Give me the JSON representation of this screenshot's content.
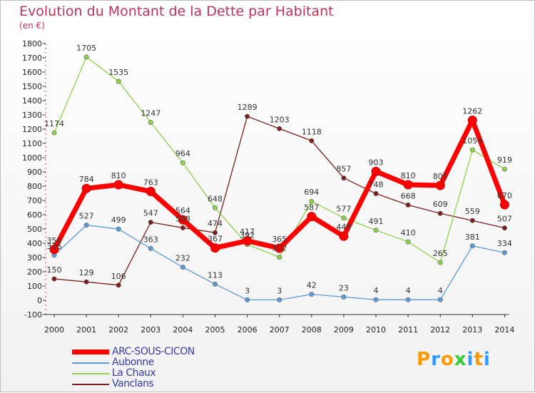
{
  "chart_data": {
    "type": "line",
    "title": "Evolution du Montant de la Dette par Habitant",
    "unit_label": "(en €)",
    "x": [
      "2000",
      "2001",
      "2002",
      "2003",
      "2004",
      "2005",
      "2006",
      "2007",
      "2008",
      "2009",
      "2010",
      "2011",
      "2012",
      "2013",
      "2014"
    ],
    "ylim": [
      -100,
      1800
    ],
    "yticks": [
      -100,
      0,
      100,
      200,
      300,
      400,
      500,
      600,
      700,
      800,
      900,
      1000,
      1100,
      1200,
      1300,
      1400,
      1500,
      1600,
      1700,
      1800
    ],
    "grid": false,
    "legend_position": "bottom-left",
    "series": [
      {
        "name": "ARC-SOUS-CICON",
        "color": "#ff0000",
        "values": [
          356,
          784,
          810,
          763,
          564,
          367,
          417,
          365,
          587,
          449,
          903,
          810,
          805,
          1262,
          670
        ]
      },
      {
        "name": "Aubonne",
        "color": "#5b9bd5",
        "values": [
          316,
          527,
          499,
          363,
          232,
          113,
          3,
          3,
          42,
          23,
          4,
          4,
          4,
          381,
          334
        ]
      },
      {
        "name": "La Chaux",
        "color": "#8cd24a",
        "values": [
          1174,
          1705,
          1535,
          1247,
          964,
          648,
          392,
          302,
          694,
          577,
          491,
          410,
          265,
          1054,
          919
        ]
      },
      {
        "name": "Vanclans",
        "color": "#7b1e1e",
        "values": [
          150,
          129,
          106,
          547,
          508,
          474,
          1289,
          1203,
          1118,
          857,
          748,
          668,
          609,
          559,
          507
        ]
      }
    ]
  },
  "logo": {
    "letters": [
      "P",
      "r",
      "o",
      "x",
      "i",
      "t",
      "i"
    ],
    "colors": [
      "#ff9900",
      "#3399ff",
      "#ff9900",
      "#33cc33",
      "#3399ff",
      "#ff9900",
      "#3399ff"
    ]
  }
}
